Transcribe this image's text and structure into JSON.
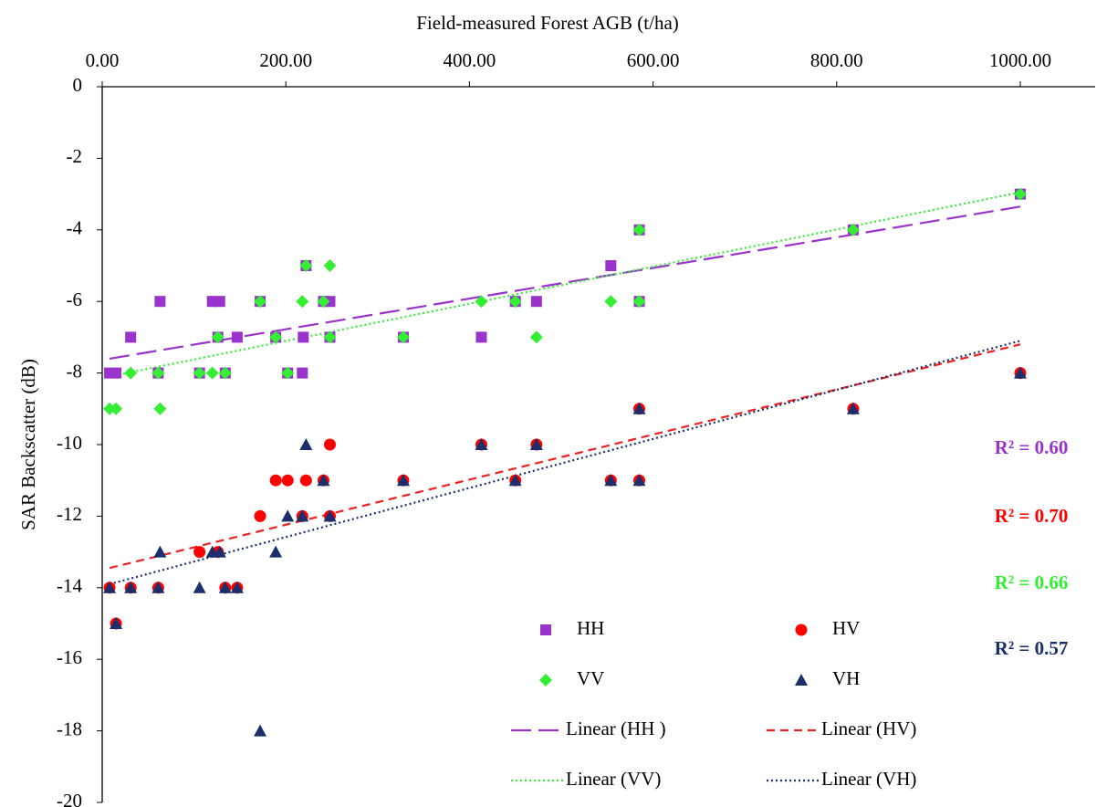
{
  "chart_data": {
    "type": "scatter",
    "x_label": "Field-measured Forest AGB (t/ha)",
    "y_label": "SAR Backscatter (dB)",
    "xlim": [
      0,
      1000
    ],
    "ylim": [
      -20,
      0
    ],
    "xticks": [
      {
        "value": 0,
        "label": "0.00"
      },
      {
        "value": 200,
        "label": "200.00"
      },
      {
        "value": 400,
        "label": "400.00"
      },
      {
        "value": 600,
        "label": "600.00"
      },
      {
        "value": 800,
        "label": "800.00"
      },
      {
        "value": 1000,
        "label": "1000.00"
      }
    ],
    "yticks": [
      0,
      -2,
      -4,
      -6,
      -8,
      -10,
      -12,
      -14,
      -16,
      -18,
      -20
    ],
    "series": [
      {
        "name": "HH",
        "color": "#9933cc",
        "marker": "square",
        "x": [
          8,
          15,
          31,
          63,
          61,
          106,
          120,
          128,
          126,
          134,
          147,
          172,
          189,
          202,
          218,
          222,
          219,
          241,
          248,
          248,
          328,
          413,
          450,
          473,
          554,
          585,
          585,
          818,
          1000
        ],
        "values": [
          -8,
          -8,
          -7,
          -6,
          -8,
          -8,
          -6,
          -6,
          -7,
          -8,
          -7,
          -6,
          -7,
          -8,
          -8,
          -5,
          -7,
          -6,
          -6,
          -7,
          -7,
          -7,
          -6,
          -6,
          -5,
          -4,
          -6,
          -4,
          -3
        ]
      },
      {
        "name": "VV",
        "color": "#33ee33",
        "marker": "diamond",
        "x": [
          8,
          15,
          31,
          61,
          63,
          106,
          120,
          126,
          134,
          172,
          189,
          202,
          218,
          222,
          241,
          248,
          248,
          328,
          413,
          450,
          473,
          554,
          585,
          585,
          818,
          1000
        ],
        "values": [
          -9,
          -9,
          -8,
          -8,
          -9,
          -8,
          -8,
          -7,
          -8,
          -6,
          -7,
          -8,
          -6,
          -5,
          -6,
          -5,
          -7,
          -7,
          -6,
          -6,
          -7,
          -6,
          -4,
          -6,
          -4,
          -3
        ]
      },
      {
        "name": "HV",
        "color": "#ff0000",
        "marker": "circle",
        "x": [
          8,
          15,
          31,
          61,
          106,
          126,
          134,
          147,
          172,
          189,
          202,
          218,
          222,
          241,
          248,
          248,
          328,
          413,
          450,
          473,
          554,
          585,
          585,
          818,
          1000
        ],
        "values": [
          -14,
          -15,
          -14,
          -14,
          -13,
          -13,
          -14,
          -14,
          -12,
          -11,
          -11,
          -12,
          -11,
          -11,
          -10,
          -12,
          -11,
          -10,
          -11,
          -10,
          -11,
          -9,
          -11,
          -9,
          -8
        ]
      },
      {
        "name": "VH",
        "color": "#1a2f6b",
        "marker": "triangle",
        "x": [
          8,
          15,
          31,
          61,
          63,
          106,
          120,
          128,
          134,
          147,
          172,
          189,
          202,
          222,
          218,
          241,
          248,
          328,
          413,
          450,
          473,
          554,
          585,
          585,
          818,
          1000
        ],
        "values": [
          -14,
          -15,
          -14,
          -14,
          -13,
          -14,
          -13,
          -13,
          -14,
          -14,
          -18,
          -13,
          -12,
          -10,
          -12,
          -11,
          -12,
          -11,
          -10,
          -11,
          -10,
          -11,
          -9,
          -11,
          -9,
          -8
        ]
      }
    ],
    "trendlines": [
      {
        "name": "Linear (HH )",
        "color": "#9933cc",
        "dash": "22 8",
        "x": [
          8,
          1000
        ],
        "values": [
          -7.6,
          -3.35
        ]
      },
      {
        "name": "Linear (HV)",
        "color": "#ee2222",
        "dash": "9 6",
        "x": [
          8,
          1000
        ],
        "values": [
          -13.45,
          -7.2
        ]
      },
      {
        "name": "Linear (VV)",
        "color": "#33ee33",
        "dash": "2 3",
        "x": [
          8,
          1000
        ],
        "values": [
          -8.1,
          -2.95
        ]
      },
      {
        "name": "Linear (VH)",
        "color": "#1a2f6b",
        "dash": "2 3",
        "x": [
          8,
          1000
        ],
        "values": [
          -13.9,
          -7.1
        ]
      }
    ],
    "annotations": [
      {
        "text": "R² = 0.60",
        "color": "#9933cc"
      },
      {
        "text": "R² = 0.70",
        "color": "#ff0000"
      },
      {
        "text": "R² = 0.66",
        "color": "#33ee33"
      },
      {
        "text": "R² = 0.57",
        "color": "#1a2f6b"
      }
    ]
  }
}
